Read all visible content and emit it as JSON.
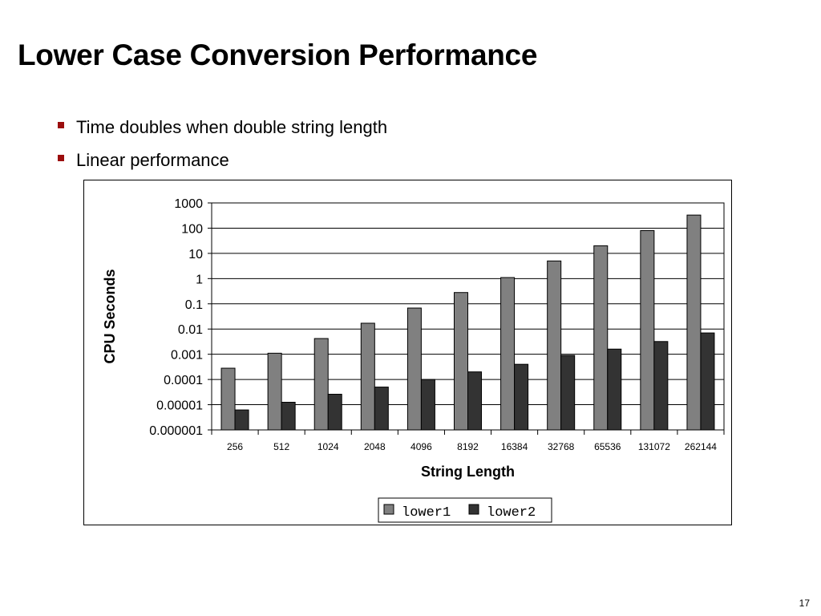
{
  "slide": {
    "title": "Lower Case Conversion Performance",
    "bullets": [
      "Time doubles when double string length",
      "Linear performance"
    ],
    "page_number": "17"
  },
  "colors": {
    "bullet": "#9b0d0d",
    "lower1": "#808080",
    "lower2": "#333333"
  },
  "chart_data": {
    "type": "bar",
    "title": "",
    "xlabel": "String Length",
    "ylabel": "CPU Seconds",
    "y_scale": "log",
    "ylim": [
      1e-06,
      1000
    ],
    "y_ticks": [
      1000,
      100,
      10,
      1,
      0.1,
      0.01,
      0.001,
      0.0001,
      1e-05,
      1e-06
    ],
    "y_tick_labels": [
      "1000",
      "100",
      "10",
      "1",
      "0.1",
      "0.01",
      "0.001",
      "0.0001",
      "0.00001",
      "0.000001"
    ],
    "grid": true,
    "legend": "bottom-center",
    "categories": [
      "256",
      "512",
      "1024",
      "2048",
      "4096",
      "8192",
      "16384",
      "32768",
      "65536",
      "131072",
      "262144"
    ],
    "series": [
      {
        "name": "lower1",
        "values": [
          0.00028,
          0.0011,
          0.0042,
          0.017,
          0.068,
          0.28,
          1.1,
          5,
          20,
          80,
          330
        ]
      },
      {
        "name": "lower2",
        "values": [
          6.2e-06,
          1.25e-05,
          2.6e-05,
          5e-05,
          0.0001,
          0.0002,
          0.0004,
          0.0009,
          0.0016,
          0.0032,
          0.007
        ]
      }
    ]
  }
}
